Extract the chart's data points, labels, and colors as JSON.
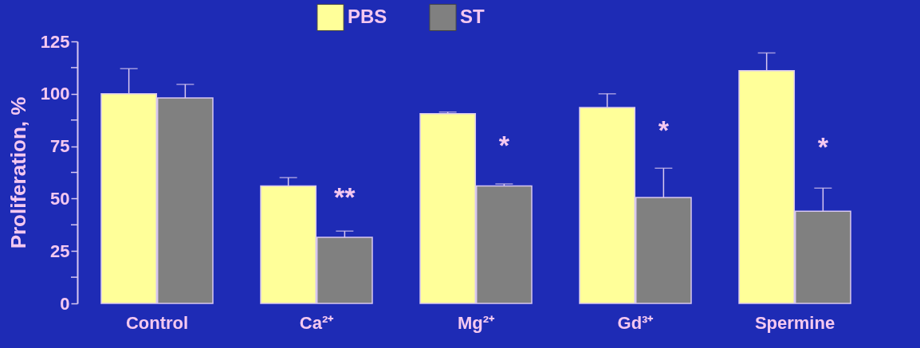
{
  "chart_data": {
    "type": "bar",
    "ylabel": "Proliferation, %",
    "categories": [
      "Control",
      "Ca²⁺",
      "Mg²⁺",
      "Gd³⁺",
      "Spermine"
    ],
    "series": [
      {
        "name": "PBS",
        "color": "#ffff99",
        "values": [
          100,
          56,
          90.5,
          93.5,
          111
        ],
        "errors": [
          [
            100,
            112
          ],
          [
            56,
            60
          ],
          [
            90.5,
            91.3
          ],
          [
            93.5,
            100
          ],
          [
            111,
            119.5
          ]
        ]
      },
      {
        "name": "ST",
        "color": "#808080",
        "values": [
          98,
          31.5,
          56,
          50.5,
          44
        ],
        "errors": [
          [
            98,
            104.5
          ],
          [
            31.5,
            34.5
          ],
          [
            56,
            57
          ],
          [
            50.5,
            64.5
          ],
          [
            44,
            55
          ]
        ]
      }
    ],
    "ylim": [
      0,
      125
    ],
    "yticks": [
      0,
      {
        "value": 12.5,
        "label": null
      },
      25,
      {
        "value": 37.5,
        "label": null
      },
      50,
      {
        "value": 62.5,
        "label": null
      },
      75,
      {
        "value": 87.5,
        "label": null
      },
      100,
      {
        "value": 112.5,
        "label": null
      },
      125
    ],
    "annotations": [
      {
        "text": "**",
        "x": "Ca²⁺",
        "y": 50
      },
      {
        "text": "*",
        "x": "Mg²⁺",
        "y": 75
      },
      {
        "text": "*",
        "x": "Gd³⁺",
        "y": 82
      },
      {
        "text": "*",
        "x": "Spermine",
        "y": 74
      }
    ],
    "grid": false,
    "legend": "top"
  }
}
